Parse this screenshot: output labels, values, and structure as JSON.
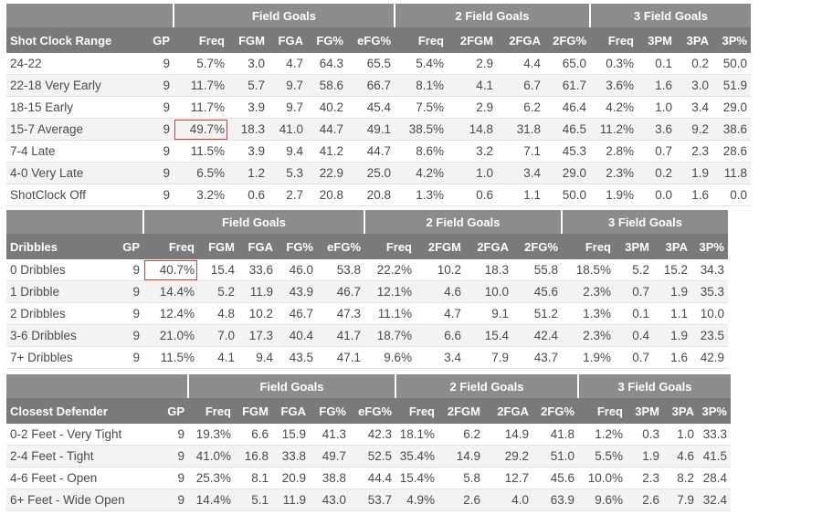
{
  "tables": [
    {
      "id": "t1",
      "groups": [
        "Field Goals",
        "2 Field Goals",
        "3 Field Goals"
      ],
      "columns": [
        "Shot Clock Range",
        "GP",
        "Freq",
        "FGM",
        "FGA",
        "FG%",
        "eFG%",
        "Freq",
        "2FGM",
        "2FGA",
        "2FG%",
        "Freq",
        "3PM",
        "3PA",
        "3P%"
      ],
      "rows": [
        [
          "24-22",
          "9",
          "5.7%",
          "3.0",
          "4.7",
          "64.3",
          "65.5",
          "5.4%",
          "2.9",
          "4.4",
          "65.0",
          "0.3%",
          "0.1",
          "0.2",
          "50.0"
        ],
        [
          "22-18 Very Early",
          "9",
          "11.7%",
          "5.7",
          "9.7",
          "58.6",
          "66.7",
          "8.1%",
          "4.1",
          "6.7",
          "61.7",
          "3.6%",
          "1.6",
          "3.0",
          "51.9"
        ],
        [
          "18-15 Early",
          "9",
          "11.7%",
          "3.9",
          "9.7",
          "40.2",
          "45.4",
          "7.5%",
          "2.9",
          "6.2",
          "46.4",
          "4.2%",
          "1.0",
          "3.4",
          "29.0"
        ],
        [
          "15-7 Average",
          "9",
          "49.7%",
          "18.3",
          "41.0",
          "44.7",
          "49.1",
          "38.5%",
          "14.8",
          "31.8",
          "46.5",
          "11.2%",
          "3.6",
          "9.2",
          "38.6"
        ],
        [
          "7-4 Late",
          "9",
          "11.5%",
          "3.9",
          "9.4",
          "41.2",
          "44.7",
          "8.6%",
          "3.2",
          "7.1",
          "45.3",
          "2.8%",
          "0.7",
          "2.3",
          "28.6"
        ],
        [
          "4-0 Very Late",
          "9",
          "6.5%",
          "1.2",
          "5.3",
          "22.9",
          "25.0",
          "4.2%",
          "1.0",
          "3.4",
          "29.0",
          "2.3%",
          "0.2",
          "1.9",
          "11.8"
        ],
        [
          "ShotClock Off",
          "9",
          "3.2%",
          "0.6",
          "2.7",
          "20.8",
          "20.8",
          "1.3%",
          "0.6",
          "1.1",
          "50.0",
          "1.9%",
          "0.0",
          "1.6",
          "0.0"
        ]
      ],
      "highlight": {
        "row": 3,
        "col": 2
      }
    },
    {
      "id": "t2",
      "groups": [
        "Field Goals",
        "2 Field Goals",
        "3 Field Goals"
      ],
      "columns": [
        "Dribbles",
        "GP",
        "Freq",
        "FGM",
        "FGA",
        "FG%",
        "eFG%",
        "Freq",
        "2FGM",
        "2FGA",
        "2FG%",
        "Freq",
        "3PM",
        "3PA",
        "3P%"
      ],
      "rows": [
        [
          "0 Dribbles",
          "9",
          "40.7%",
          "15.4",
          "33.6",
          "46.0",
          "53.8",
          "22.2%",
          "10.2",
          "18.3",
          "55.8",
          "18.5%",
          "5.2",
          "15.2",
          "34.3"
        ],
        [
          "1 Dribble",
          "9",
          "14.4%",
          "5.2",
          "11.9",
          "43.9",
          "46.7",
          "12.1%",
          "4.6",
          "10.0",
          "45.6",
          "2.3%",
          "0.7",
          "1.9",
          "35.3"
        ],
        [
          "2 Dribbles",
          "9",
          "12.4%",
          "4.8",
          "10.2",
          "46.7",
          "47.3",
          "11.1%",
          "4.7",
          "9.1",
          "51.2",
          "1.3%",
          "0.1",
          "1.1",
          "10.0"
        ],
        [
          "3-6 Dribbles",
          "9",
          "21.0%",
          "7.0",
          "17.3",
          "40.4",
          "41.7",
          "18.7%",
          "6.6",
          "15.4",
          "42.4",
          "2.3%",
          "0.4",
          "1.9",
          "23.5"
        ],
        [
          "7+ Dribbles",
          "9",
          "11.5%",
          "4.1",
          "9.4",
          "43.5",
          "47.1",
          "9.6%",
          "3.4",
          "7.9",
          "43.7",
          "1.9%",
          "0.7",
          "1.6",
          "42.9"
        ]
      ],
      "highlight": {
        "row": 0,
        "col": 2
      }
    },
    {
      "id": "t3",
      "groups": [
        "Field Goals",
        "2 Field Goals",
        "3 Field Goals"
      ],
      "columns": [
        "Closest Defender",
        "GP",
        "Freq",
        "FGM",
        "FGA",
        "FG%",
        "eFG%",
        "Freq",
        "2FGM",
        "2FGA",
        "2FG%",
        "Freq",
        "3PM",
        "3PA",
        "3P%"
      ],
      "rows": [
        [
          "0-2 Feet - Very Tight",
          "9",
          "19.3%",
          "6.6",
          "15.9",
          "41.3",
          "42.3",
          "18.1%",
          "6.2",
          "14.9",
          "41.8",
          "1.2%",
          "0.3",
          "1.0",
          "33.3"
        ],
        [
          "2-4 Feet - Tight",
          "9",
          "41.0%",
          "16.8",
          "33.8",
          "49.7",
          "52.5",
          "35.4%",
          "14.9",
          "29.2",
          "51.0",
          "5.5%",
          "1.9",
          "4.6",
          "41.5"
        ],
        [
          "4-6 Feet - Open",
          "9",
          "25.3%",
          "8.1",
          "20.9",
          "38.8",
          "44.4",
          "15.4%",
          "5.8",
          "12.7",
          "45.6",
          "10.0%",
          "2.3",
          "8.2",
          "28.4"
        ],
        [
          "6+ Feet - Wide Open",
          "9",
          "14.4%",
          "5.1",
          "11.9",
          "43.0",
          "53.7",
          "4.9%",
          "2.6",
          "4.0",
          "63.9",
          "9.6%",
          "2.6",
          "7.9",
          "32.4"
        ]
      ],
      "highlight": null
    }
  ]
}
